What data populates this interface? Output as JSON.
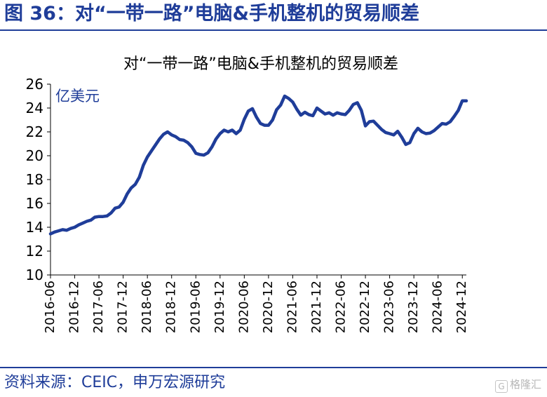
{
  "figure_title": "图 36：对“一带一路”电脑&手机整机的贸易顺差",
  "source": "资料来源：CEIC，申万宏源研究",
  "watermark": "格隆汇",
  "colors": {
    "brand": "#1F3D99",
    "line": "#1F3D99"
  },
  "chart_data": {
    "type": "line",
    "title": "对“一带一路”电脑&手机整机的贸易顺差",
    "unit_label": "亿美元",
    "xlabel": "",
    "ylabel": "",
    "ylim": [
      10,
      26
    ],
    "yticks": [
      10,
      12,
      14,
      16,
      18,
      20,
      22,
      24,
      26
    ],
    "xticks": [
      "2016-06",
      "2016-12",
      "2017-06",
      "2017-12",
      "2018-06",
      "2018-12",
      "2019-06",
      "2019-12",
      "2020-06",
      "2020-12",
      "2021-06",
      "2021-12",
      "2022-06",
      "2022-12",
      "2023-06",
      "2023-12",
      "2024-06",
      "2024-12"
    ],
    "grid": false,
    "legend": "none",
    "series": [
      {
        "values": [
          13.45,
          13.6,
          13.7,
          13.8,
          13.75,
          13.9,
          14.0,
          14.2,
          14.35,
          14.5,
          14.6,
          14.85,
          14.9,
          14.9,
          14.95,
          15.2,
          15.6,
          15.7,
          16.1,
          16.8,
          17.3,
          17.6,
          18.2,
          19.2,
          19.9,
          20.4,
          20.9,
          21.4,
          21.8,
          22.0,
          21.75,
          21.6,
          21.35,
          21.3,
          21.1,
          20.75,
          20.2,
          20.1,
          20.05,
          20.25,
          20.75,
          21.4,
          21.85,
          22.15,
          22.0,
          22.15,
          21.85,
          22.15,
          23.05,
          23.75,
          23.95,
          23.25,
          22.7,
          22.55,
          22.55,
          23.0,
          23.85,
          24.25,
          25.0,
          24.8,
          24.5,
          23.9,
          23.4,
          23.65,
          23.45,
          23.35,
          24.0,
          23.75,
          23.5,
          23.6,
          23.4,
          23.6,
          23.5,
          23.45,
          23.8,
          24.3,
          24.45,
          23.8,
          22.5,
          22.85,
          22.9,
          22.55,
          22.2,
          21.95,
          21.85,
          21.75,
          22.05,
          21.55,
          20.95,
          21.1,
          21.85,
          22.3,
          22.0,
          21.85,
          21.9,
          22.1,
          22.4,
          22.7,
          22.65,
          22.85,
          23.3,
          23.8,
          24.6,
          24.6
        ]
      }
    ]
  }
}
